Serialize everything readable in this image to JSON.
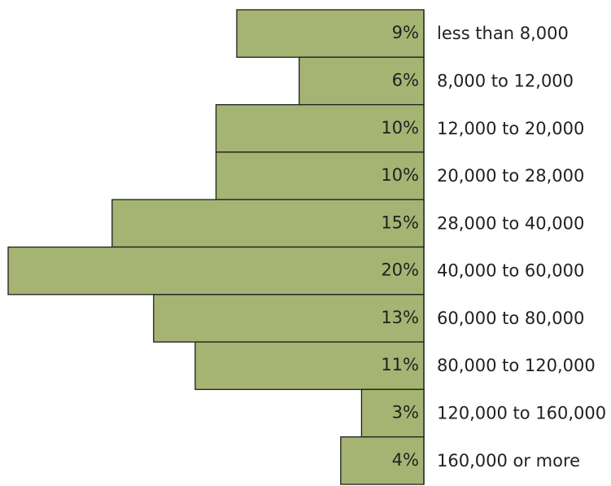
{
  "chart_data": {
    "type": "bar",
    "orientation": "horizontal",
    "categories": [
      "less than 8,000",
      "8,000 to 12,000",
      "12,000 to 20,000",
      "20,000 to 28,000",
      "28,000 to 40,000",
      "40,000 to 60,000",
      "60,000 to 80,000",
      "80,000 to 120,000",
      "120,000 to 160,000",
      "160,000 or more"
    ],
    "values": [
      9,
      6,
      10,
      10,
      15,
      20,
      13,
      11,
      3,
      4
    ],
    "value_labels": [
      "9%",
      "6%",
      "10%",
      "10%",
      "15%",
      "20%",
      "13%",
      "11%",
      "3%",
      "4%"
    ],
    "bar_direction": "right-aligned, extending left",
    "grid": false,
    "legend": "none",
    "colors": {
      "bar_fill": "#a5b473",
      "bar_stroke": "#1e1e1e",
      "text": "#231f20",
      "axis": "#1e1e1e"
    }
  }
}
